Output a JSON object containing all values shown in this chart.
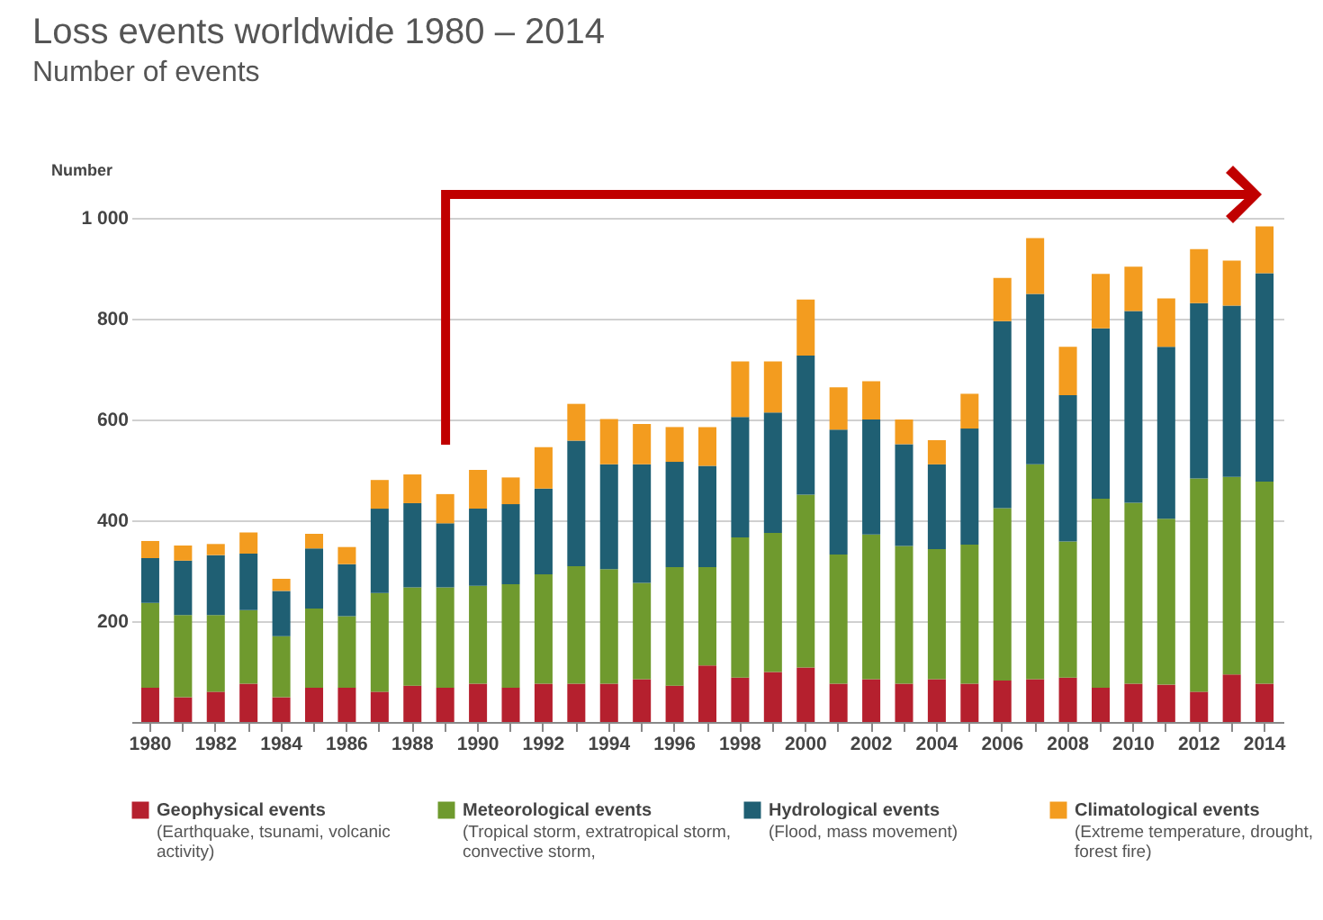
{
  "chart_data": {
    "type": "bar",
    "stacked": true,
    "title": "Loss events worldwide 1980 – 2014",
    "subtitle": "Number of events",
    "ylabel": "Number",
    "categories": [
      "1980",
      null,
      "1982",
      null,
      "1984",
      null,
      "1986",
      null,
      "1988",
      null,
      "1990",
      null,
      "1992",
      null,
      "1994",
      null,
      "1996",
      null,
      "1998",
      null,
      "2000",
      null,
      "2002",
      null,
      "2004",
      null,
      "2006",
      null,
      "2008",
      null,
      "2010",
      null,
      "2012",
      null,
      "2014"
    ],
    "series": [
      {
        "name": "Geophysical events",
        "color": "#b5202e",
        "values": [
          68,
          49,
          60,
          76,
          49,
          68,
          68,
          60,
          72,
          68,
          76,
          68,
          76,
          76,
          76,
          85,
          72,
          112,
          88,
          99,
          108,
          76,
          85,
          76,
          85,
          76,
          82,
          85,
          88,
          68,
          76,
          74,
          60,
          94,
          76
        ]
      },
      {
        "name": "Meteorological events",
        "color": "#6f9a2e",
        "values": [
          168,
          163,
          152,
          146,
          121,
          157,
          142,
          196,
          195,
          199,
          194,
          205,
          217,
          233,
          227,
          191,
          235,
          195,
          278,
          276,
          343,
          256,
          287,
          273,
          258,
          276,
          342,
          426,
          270,
          375,
          359,
          329,
          423,
          392,
          401
        ]
      },
      {
        "name": "Hydrological events",
        "color": "#1f5f73",
        "values": [
          89,
          108,
          119,
          112,
          90,
          119,
          103,
          167,
          167,
          127,
          153,
          159,
          170,
          249,
          208,
          235,
          209,
          201,
          239,
          239,
          276,
          248,
          228,
          202,
          168,
          230,
          371,
          338,
          290,
          338,
          380,
          341,
          348,
          340,
          413
        ]
      },
      {
        "name": "Climatological events",
        "color": "#f39c1f",
        "values": [
          34,
          30,
          22,
          42,
          24,
          29,
          34,
          57,
          57,
          58,
          77,
          53,
          82,
          73,
          90,
          80,
          69,
          77,
          110,
          101,
          111,
          84,
          76,
          49,
          48,
          69,
          86,
          111,
          96,
          108,
          88,
          96,
          107,
          89,
          93
        ]
      }
    ],
    "ylim": [
      0,
      1000
    ],
    "yticks": [
      200,
      400,
      600,
      800,
      {
        "value": 1000,
        "label": "1 000"
      }
    ],
    "grid": "y",
    "legend": "bottom",
    "annotations": [
      "(Earthquake, tsunami, volcanic activity)",
      "(Tropical storm, extratropical storm, convective storm,",
      "(Flood, mass movement)",
      "(Extreme temperature, drought, forest fire)"
    ]
  }
}
